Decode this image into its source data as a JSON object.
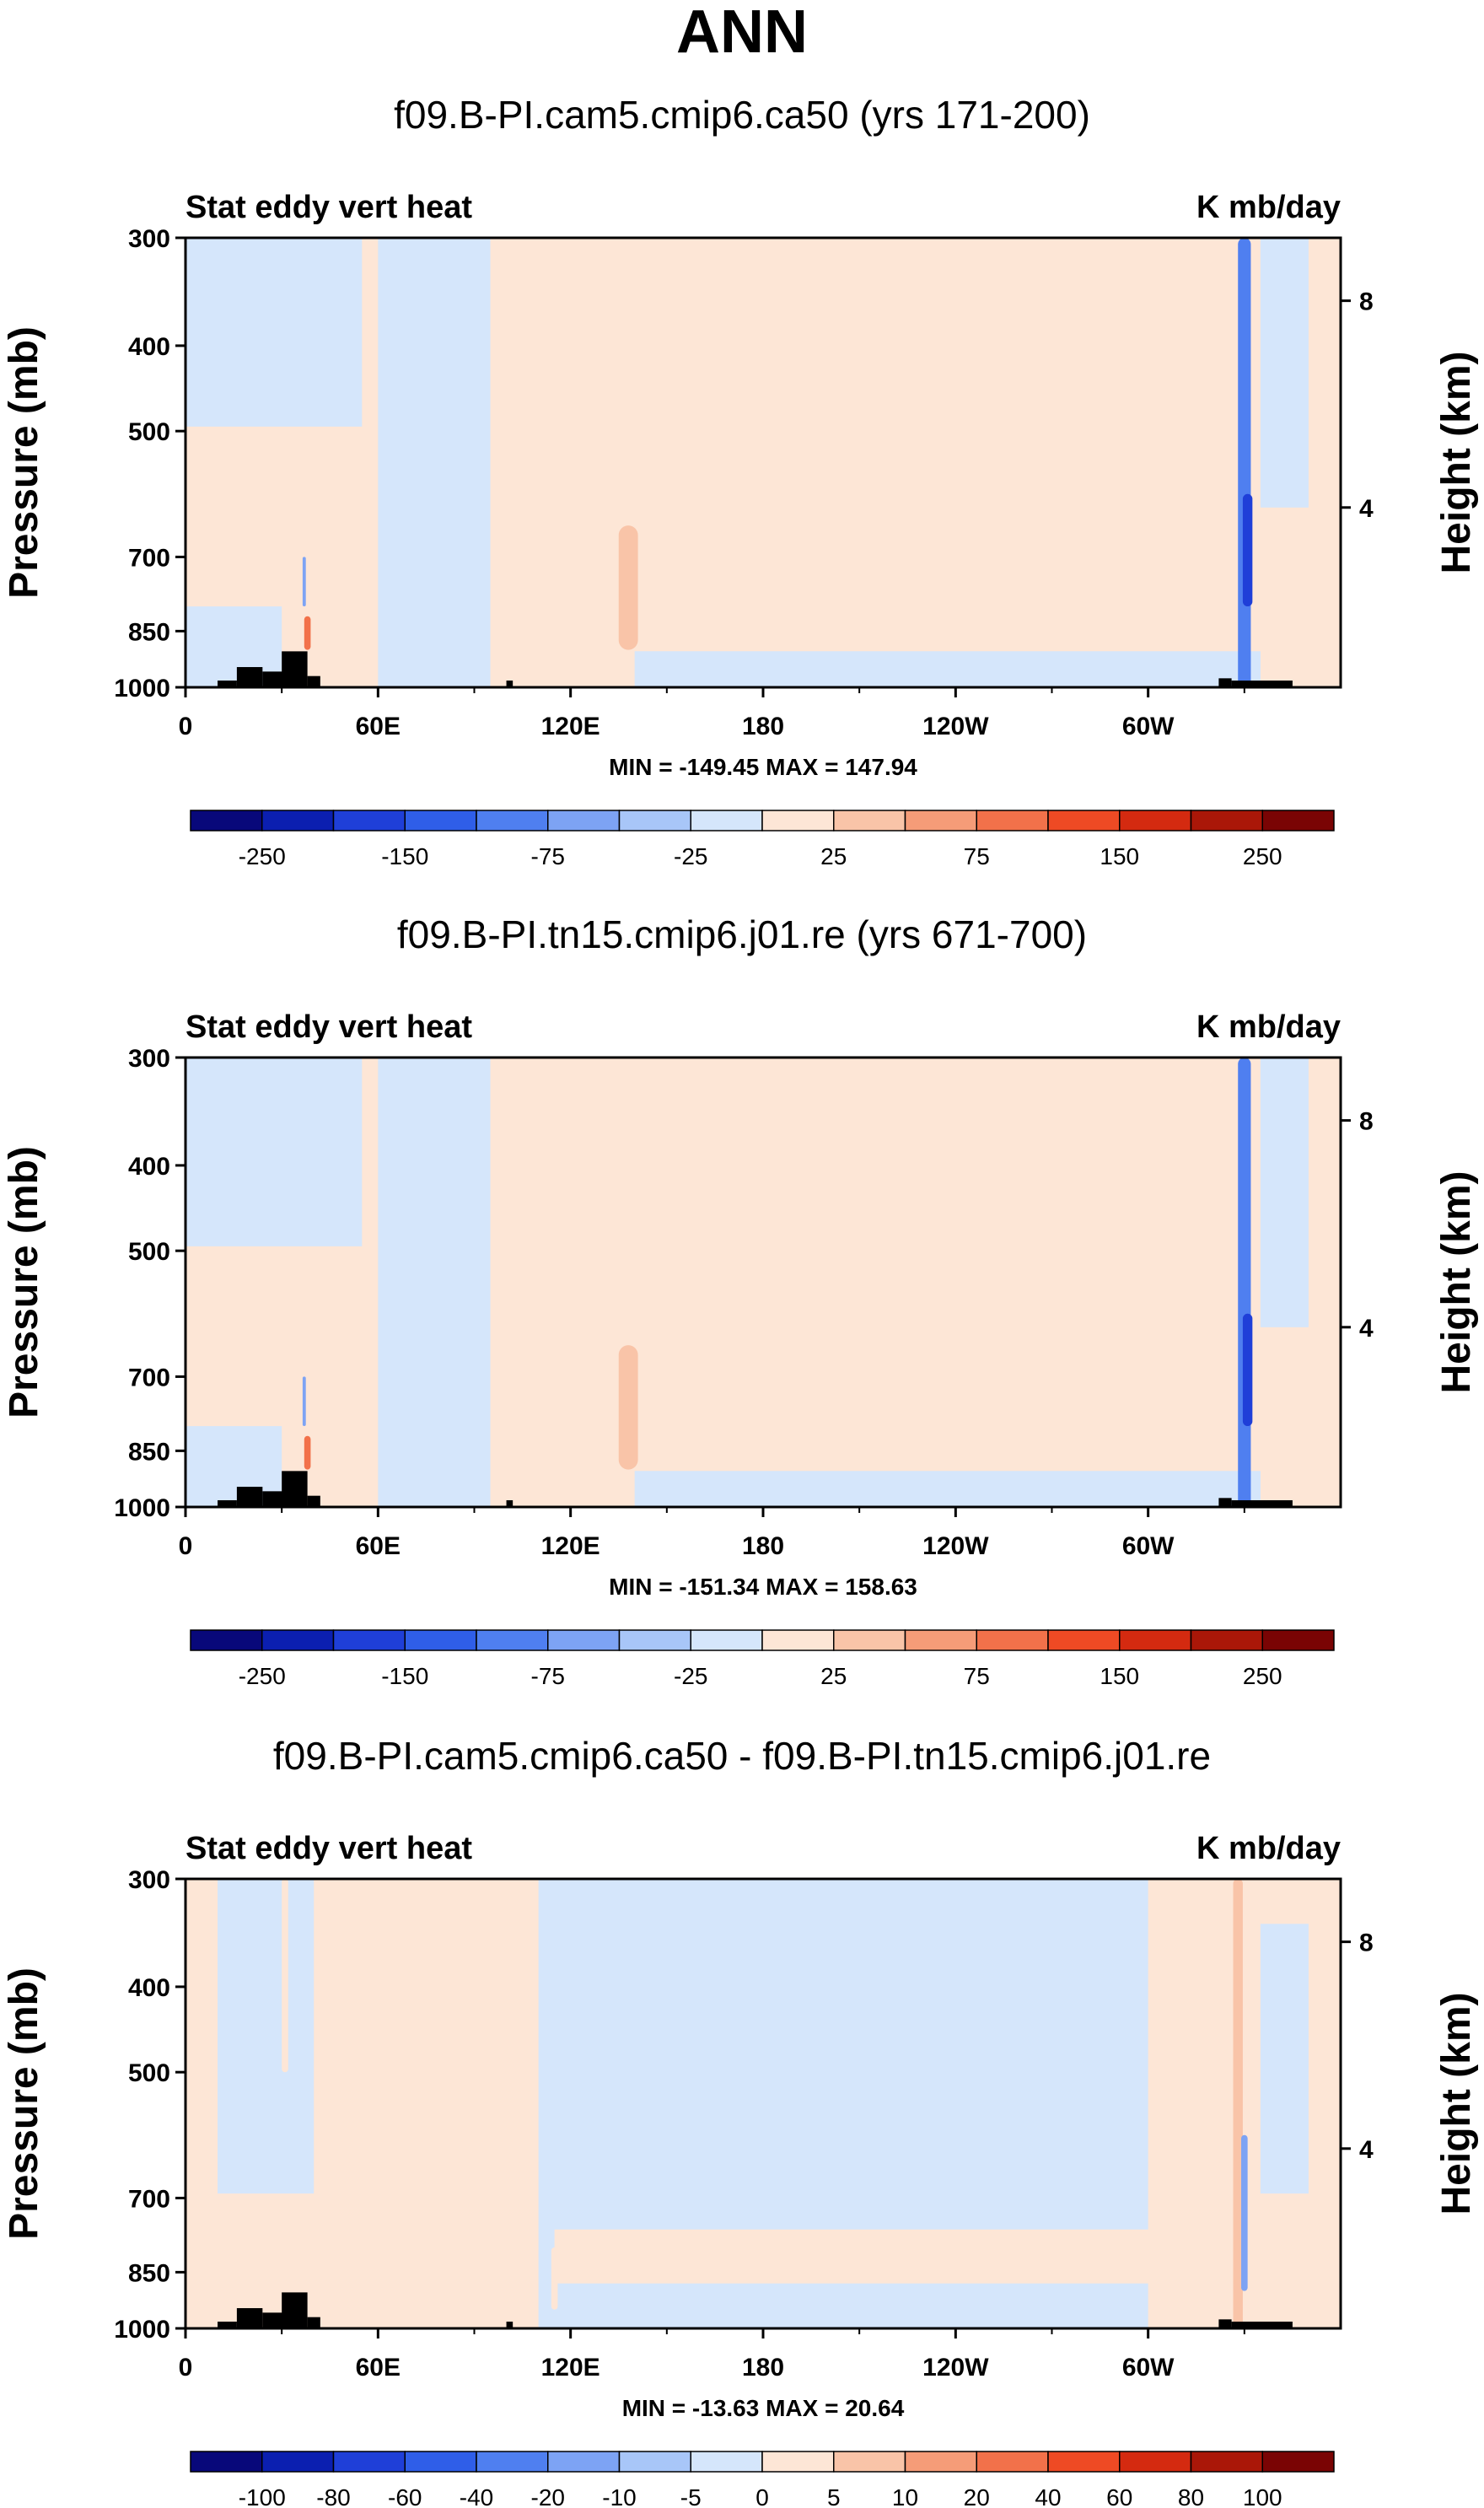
{
  "title": "ANN",
  "palette": {
    "blues": [
      "#08087a",
      "#0b1fb0",
      "#1f3fd8",
      "#2f5ee8",
      "#4f7ff0",
      "#7da3f4",
      "#a8c6f8",
      "#d5e6fb"
    ],
    "reds": [
      "#fde6d6",
      "#f9c4a8",
      "#f59c78",
      "#f2714a",
      "#ee4a24",
      "#d42a10",
      "#aa1708",
      "#7a0404"
    ],
    "land": "#000000"
  },
  "chart_data": [
    {
      "type": "heatmap",
      "title": "f09.B-PI.cam5.cmip6.ca50 (yrs 171-200)",
      "left_label": "Stat eddy vert heat",
      "right_label": "K mb/day",
      "ylabel": "Pressure (mb)",
      "ylabel_right": "Height (km)",
      "y_ticks": [
        "300",
        "400",
        "500",
        "700",
        "850",
        "1000"
      ],
      "y_right_ticks": [
        "8",
        "4"
      ],
      "x_ticks": [
        "0",
        "60E",
        "120E",
        "180",
        "120W",
        "60W"
      ],
      "minmax": "MIN = -149.45   MAX = 147.94",
      "colorbar_labels": [
        "-250",
        "-150",
        "-75",
        "-25",
        "25",
        "75",
        "150",
        "250"
      ],
      "features": [
        {
          "lon": 330,
          "p": [
            300,
            1000
          ],
          "width": 4,
          "level": -4
        },
        {
          "lon": 331,
          "p": [
            600,
            800
          ],
          "width": 3,
          "level": -6
        },
        {
          "lon": 138,
          "p": [
            650,
            900
          ],
          "width": 6,
          "level": 2
        },
        {
          "lon": 38,
          "p": [
            820,
            900
          ],
          "width": 2,
          "level": 4
        },
        {
          "lon": 37,
          "p": [
            700,
            800
          ],
          "width": 1,
          "level": -3
        }
      ]
    },
    {
      "type": "heatmap",
      "title": "f09.B-PI.tn15.cmip6.j01.re (yrs 671-700)",
      "left_label": "Stat eddy vert heat",
      "right_label": "K mb/day",
      "ylabel": "Pressure (mb)",
      "ylabel_right": "Height (km)",
      "y_ticks": [
        "300",
        "400",
        "500",
        "700",
        "850",
        "1000"
      ],
      "y_right_ticks": [
        "8",
        "4"
      ],
      "x_ticks": [
        "0",
        "60E",
        "120E",
        "180",
        "120W",
        "60W"
      ],
      "minmax": "MIN = -151.34   MAX = 158.63",
      "colorbar_labels": [
        "-250",
        "-150",
        "-75",
        "-25",
        "25",
        "75",
        "150",
        "250"
      ],
      "features": [
        {
          "lon": 330,
          "p": [
            300,
            1000
          ],
          "width": 4,
          "level": -4
        },
        {
          "lon": 331,
          "p": [
            600,
            800
          ],
          "width": 3,
          "level": -6
        },
        {
          "lon": 138,
          "p": [
            650,
            900
          ],
          "width": 6,
          "level": 2
        },
        {
          "lon": 38,
          "p": [
            820,
            900
          ],
          "width": 2,
          "level": 4
        },
        {
          "lon": 37,
          "p": [
            700,
            800
          ],
          "width": 1,
          "level": -3
        }
      ]
    },
    {
      "type": "heatmap",
      "title": "f09.B-PI.cam5.cmip6.ca50 - f09.B-PI.tn15.cmip6.j01.re",
      "left_label": "Stat eddy vert heat",
      "right_label": "K mb/day",
      "ylabel": "Pressure (mb)",
      "ylabel_right": "Height (km)",
      "y_ticks": [
        "300",
        "400",
        "500",
        "700",
        "850",
        "1000"
      ],
      "y_right_ticks": [
        "8",
        "4"
      ],
      "x_ticks": [
        "0",
        "60E",
        "120E",
        "180",
        "120W",
        "60W"
      ],
      "minmax": "MIN = -13.63   MAX = 20.64",
      "colorbar_labels": [
        "-100",
        "-80",
        "-60",
        "-40",
        "-20",
        "-10",
        "-5",
        "0",
        "5",
        "10",
        "20",
        "40",
        "60",
        "80",
        "100"
      ],
      "features": [
        {
          "lon": 328,
          "p": [
            300,
            1000
          ],
          "width": 3,
          "level": 2
        },
        {
          "lon": 330,
          "p": [
            600,
            900
          ],
          "width": 2,
          "level": -3
        },
        {
          "lon": 31,
          "p": [
            300,
            500
          ],
          "width": 2,
          "level": 1
        },
        {
          "lon": 115,
          "p": [
            800,
            950
          ],
          "width": 2,
          "level": 1
        },
        {
          "lon": 36,
          "p": [
            820,
            900
          ],
          "width": 2,
          "level": 1
        }
      ]
    }
  ]
}
